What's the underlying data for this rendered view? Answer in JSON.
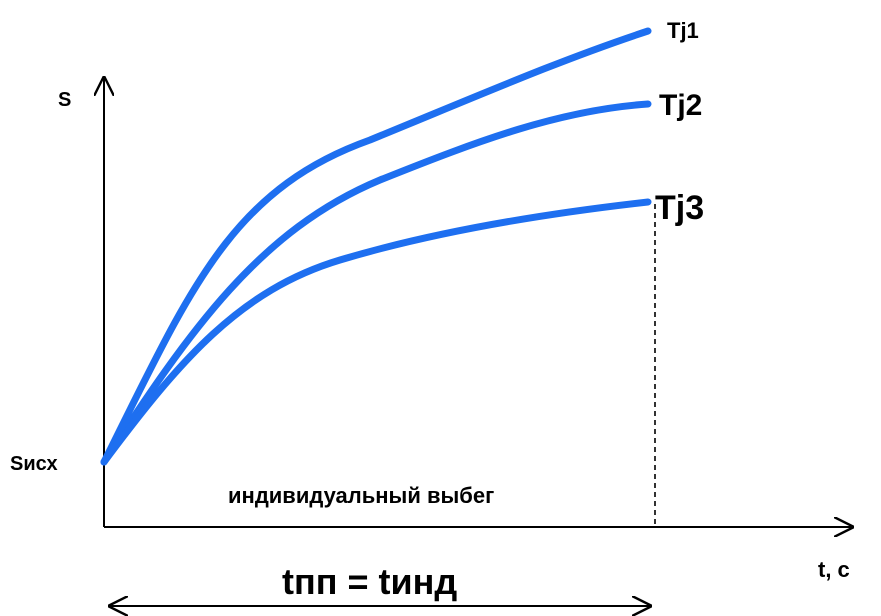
{
  "chart_data": {
    "type": "line",
    "ylabel": "S",
    "xlabel": "t, c",
    "y_origin_label": "Sисх",
    "series": [
      {
        "name": "Tj1",
        "color": "#1e6ff0"
      },
      {
        "name": "Tj2",
        "color": "#1e6ff0"
      },
      {
        "name": "Tj3",
        "color": "#1e6ff0"
      }
    ],
    "region_label": "индивидуальный выбег",
    "equation": "tпп = tинд",
    "colors": {
      "curve": "#1e6ff0",
      "axis": "#000000"
    }
  }
}
